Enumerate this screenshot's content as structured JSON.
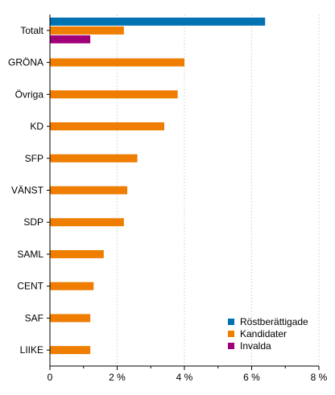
{
  "chart_data": {
    "type": "bar",
    "orientation": "horizontal",
    "categories": [
      "Totalt",
      "GRÖNA",
      "Övriga",
      "KD",
      "SFP",
      "VÄNST",
      "SDP",
      "SAML",
      "CENT",
      "SAF",
      "LIIKE"
    ],
    "series": [
      {
        "name": "Röstberättigade",
        "color": "#0072B2",
        "values": [
          6.4,
          null,
          null,
          null,
          null,
          null,
          null,
          null,
          null,
          null,
          null
        ]
      },
      {
        "name": "Kandidater",
        "color": "#EF7D00",
        "values": [
          2.2,
          4.0,
          3.8,
          3.4,
          2.6,
          2.3,
          2.2,
          1.6,
          1.3,
          1.2,
          1.2
        ]
      },
      {
        "name": "Invalda",
        "color": "#A0007A",
        "values": [
          1.2,
          null,
          null,
          null,
          null,
          null,
          null,
          null,
          null,
          null,
          null
        ]
      }
    ],
    "xlim": [
      0,
      8
    ],
    "xticks": [
      0,
      2,
      4,
      6,
      8
    ],
    "xtick_labels": [
      "0",
      "2 %",
      "4 %",
      "6 %",
      "8 %"
    ],
    "grid": "vertical",
    "legend_position": "bottom-right"
  }
}
